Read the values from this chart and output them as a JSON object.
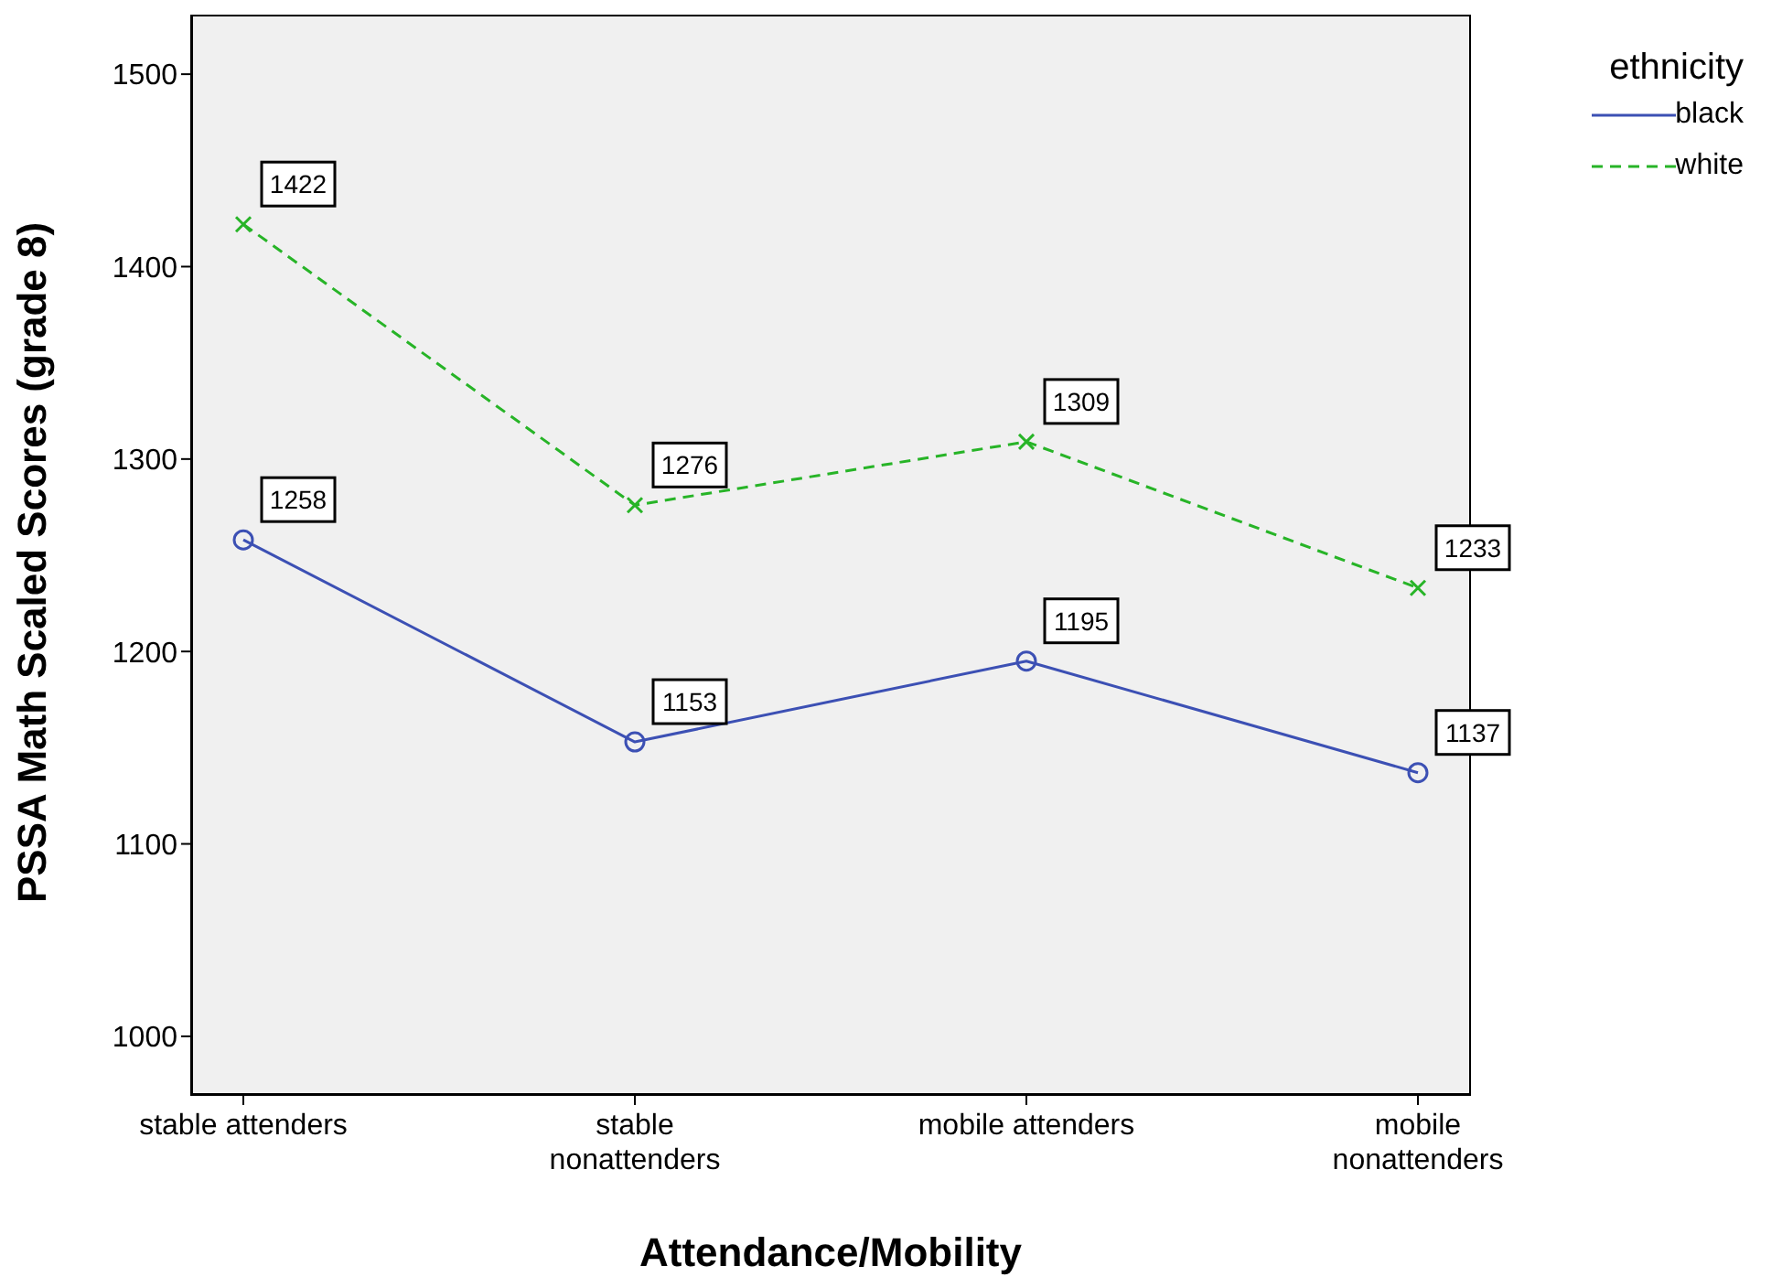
{
  "chart_data": {
    "type": "line",
    "xlabel": "Attendance/Mobility",
    "ylabel": "PSSA Math Scaled Scores (grade 8)",
    "legend_title": "ethnicity",
    "categories": [
      "stable attenders",
      "stable nonattenders",
      "mobile attenders",
      "mobile nonattenders"
    ],
    "series": [
      {
        "name": "black",
        "color": "#3c50b4",
        "values": [
          1258,
          1153,
          1195,
          1137
        ],
        "marker": "circle",
        "line_style": "solid"
      },
      {
        "name": "white",
        "color": "#27b427",
        "values": [
          1422,
          1276,
          1309,
          1233
        ],
        "marker": "cross",
        "line_style": "dashed"
      }
    ],
    "ylim": [
      970,
      1530
    ],
    "yticks": [
      1000,
      1100,
      1200,
      1300,
      1400,
      1500
    ],
    "data_labels": true,
    "legend": "top right"
  }
}
